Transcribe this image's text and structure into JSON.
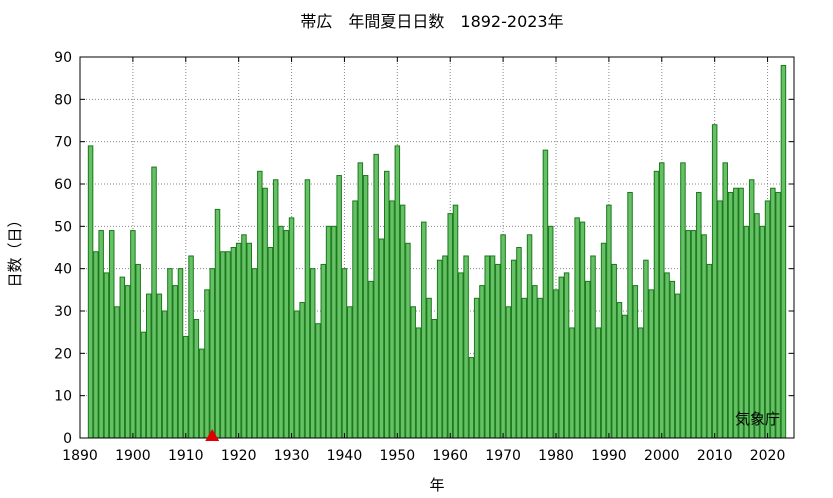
{
  "chart_data": {
    "type": "bar",
    "title": "帯広　年間夏日日数　1892-2023年",
    "xlabel": "年",
    "ylabel": "日数（日）",
    "credit": "気象庁",
    "xlim": [
      1890,
      2025
    ],
    "ylim": [
      0,
      90
    ],
    "x_ticks": [
      "1890",
      "1900",
      "1910",
      "1920",
      "1930",
      "1940",
      "1950",
      "1960",
      "1970",
      "1980",
      "1990",
      "2000",
      "2010",
      "2020"
    ],
    "y_ticks": [
      "0",
      "10",
      "20",
      "30",
      "40",
      "50",
      "60",
      "70",
      "80",
      "90"
    ],
    "grid": true,
    "bar_color": "#66c066",
    "bar_edge_color": "#1a7a1a",
    "marker": {
      "year": 1915,
      "color": "#e00000",
      "shape": "triangle"
    },
    "series": [
      {
        "x": [
          1892,
          1893,
          1894,
          1895,
          1896,
          1897,
          1898,
          1899,
          1900,
          1901,
          1902,
          1903,
          1904,
          1905,
          1906,
          1907,
          1908,
          1909,
          1910,
          1911,
          1912,
          1913,
          1914,
          1915,
          1916,
          1917,
          1918,
          1919,
          1920,
          1921,
          1922,
          1923,
          1924,
          1925,
          1926,
          1927,
          1928,
          1929,
          1930,
          1931,
          1932,
          1933,
          1934,
          1935,
          1936,
          1937,
          1938,
          1939,
          1940,
          1941,
          1942,
          1943,
          1944,
          1945,
          1946,
          1947,
          1948,
          1949,
          1950,
          1951,
          1952,
          1953,
          1954,
          1955,
          1956,
          1957,
          1958,
          1959,
          1960,
          1961,
          1962,
          1963,
          1964,
          1965,
          1966,
          1967,
          1968,
          1969,
          1970,
          1971,
          1972,
          1973,
          1974,
          1975,
          1976,
          1977,
          1978,
          1979,
          1980,
          1981,
          1982,
          1983,
          1984,
          1985,
          1986,
          1987,
          1988,
          1989,
          1990,
          1991,
          1992,
          1993,
          1994,
          1995,
          1996,
          1997,
          1998,
          1999,
          2000,
          2001,
          2002,
          2003,
          2004,
          2005,
          2006,
          2007,
          2008,
          2009,
          2010,
          2011,
          2012,
          2013,
          2014,
          2015,
          2016,
          2017,
          2018,
          2019,
          2020,
          2021,
          2022,
          2023
        ],
        "values": [
          69,
          44,
          49,
          39,
          49,
          31,
          38,
          36,
          49,
          41,
          25,
          34,
          64,
          34,
          30,
          40,
          36,
          40,
          24,
          43,
          28,
          21,
          35,
          40,
          54,
          44,
          44,
          45,
          46,
          48,
          46,
          40,
          63,
          59,
          45,
          61,
          50,
          49,
          52,
          30,
          32,
          61,
          40,
          27,
          41,
          50,
          50,
          62,
          40,
          31,
          56,
          65,
          62,
          37,
          67,
          47,
          63,
          56,
          69,
          55,
          46,
          31,
          26,
          51,
          33,
          28,
          42,
          43,
          53,
          55,
          39,
          43,
          19,
          33,
          36,
          43,
          43,
          41,
          48,
          31,
          42,
          45,
          33,
          48,
          36,
          33,
          68,
          50,
          35,
          38,
          39,
          26,
          52,
          51,
          37,
          43,
          26,
          46,
          55,
          41,
          32,
          29,
          58,
          36,
          26,
          42,
          35,
          63,
          65,
          39,
          37,
          34,
          65,
          49,
          49,
          58,
          48,
          41,
          74,
          56,
          65,
          58,
          59,
          59,
          50,
          61,
          53,
          50,
          56,
          59,
          58,
          88
        ]
      }
    ]
  }
}
